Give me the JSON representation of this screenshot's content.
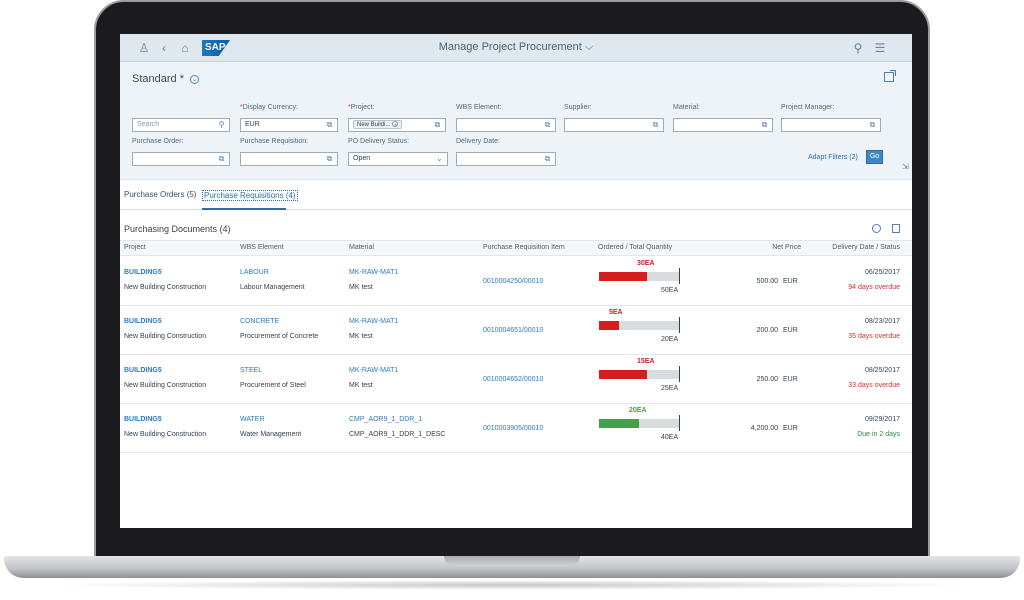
{
  "shell": {
    "title": "Manage Project Procurement ⌵",
    "logo": "SAP"
  },
  "filter_bar": {
    "variant": "Standard *",
    "search": {
      "placeholder": "Search"
    },
    "fields": [
      {
        "label": "Display Currency:",
        "required": true,
        "value": "EUR"
      },
      {
        "label": "Project:",
        "required": true,
        "token": "New Buildi..."
      },
      {
        "label": "WBS Element:",
        "required": false,
        "value": ""
      },
      {
        "label": "Supplier:",
        "required": false,
        "value": ""
      },
      {
        "label": "Material:",
        "required": false,
        "value": ""
      },
      {
        "label": "Project Manager:",
        "required": false,
        "value": ""
      },
      {
        "label": "Purchase Order:",
        "required": false,
        "value": ""
      },
      {
        "label": "Purchase Requisition:",
        "required": false,
        "value": ""
      },
      {
        "label": "PO Delivery Status:",
        "required": false,
        "value": "Open"
      },
      {
        "label": "Delivery Date:",
        "required": false,
        "value": ""
      }
    ],
    "adapt_filters": "Adapt Filters (2)",
    "go": "Go"
  },
  "tabs": [
    {
      "label": "Purchase Orders (5)",
      "selected": false
    },
    {
      "label": "Purchase Requisitions (4)",
      "selected": true
    }
  ],
  "table": {
    "title": "Purchasing Documents (4)",
    "columns": [
      "Project",
      "WBS Element",
      "Material",
      "Purchase Requisition Item",
      "Ordered / Total Quantity",
      "Net Price",
      "Delivery Date / Status"
    ],
    "rows": [
      {
        "project": "BUILDING5",
        "project_desc": "New Building Construction",
        "wbs": "LABOUR",
        "wbs_desc": "Labour Management",
        "material": "MK-RAW-MAT1",
        "material_desc": "MK test",
        "pr_item": "0010004250/00010",
        "ordered_label": "30EA",
        "total_label": "50EA",
        "ordered": 30,
        "total": 50,
        "bar_color": "#d71e1e",
        "price": "500.00",
        "currency": "EUR",
        "date": "06/25/2017",
        "status": "94 days overdue",
        "status_type": "overdue"
      },
      {
        "project": "BUILDING5",
        "project_desc": "New Building Construction",
        "wbs": "CONCRETE",
        "wbs_desc": "Procurement of Concrete",
        "material": "MK-RAW-MAT1",
        "material_desc": "MK test",
        "pr_item": "0010004651/00010",
        "ordered_label": "5EA",
        "total_label": "20EA",
        "ordered": 5,
        "total": 20,
        "bar_color": "#d71e1e",
        "price": "200.00",
        "currency": "EUR",
        "date": "08/23/2017",
        "status": "35 days overdue",
        "status_type": "overdue"
      },
      {
        "project": "BUILDING5",
        "project_desc": "New Building Construction",
        "wbs": "STEEL",
        "wbs_desc": "Procurement of Steel",
        "material": "MK-RAW-MAT1",
        "material_desc": "MK test",
        "pr_item": "0010004652/00010",
        "ordered_label": "15EA",
        "total_label": "25EA",
        "ordered": 15,
        "total": 25,
        "bar_color": "#d71e1e",
        "price": "250.00",
        "currency": "EUR",
        "date": "08/25/2017",
        "status": "33 days overdue",
        "status_type": "overdue"
      },
      {
        "project": "BUILDING5",
        "project_desc": "New Building Construction",
        "wbs": "WATER",
        "wbs_desc": "Water Management",
        "material": "CMP_AOR9_1_DDR_1",
        "material_desc": "CMP_AOR9_1_DDR_1_DESC",
        "pr_item": "0010003905/00010",
        "ordered_label": "20EA",
        "total_label": "40EA",
        "ordered": 20,
        "total": 40,
        "bar_color": "#3ea34a",
        "price": "4,200.00",
        "currency": "EUR",
        "date": "09/29/2017",
        "status": "Due in 2 days",
        "status_type": "due"
      }
    ]
  }
}
